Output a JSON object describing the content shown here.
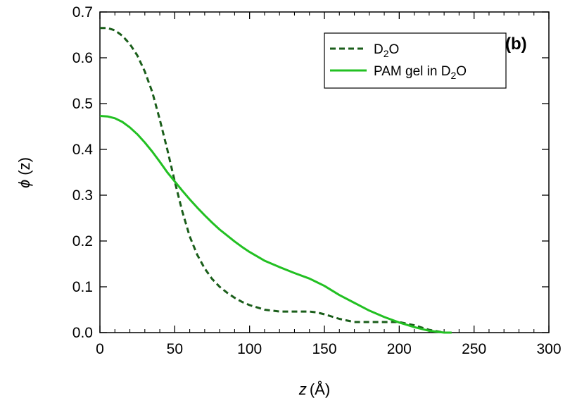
{
  "chart_data": {
    "type": "line",
    "panel_label": "(b)",
    "xlabel": {
      "var": "z",
      "unit": "(Å)"
    },
    "ylabel": {
      "var": "ϕ",
      "arg": "(z)"
    },
    "xlim": [
      0,
      300
    ],
    "ylim": [
      0,
      0.7
    ],
    "xticks": [
      0,
      50,
      100,
      150,
      200,
      250,
      300
    ],
    "xtick_labels": [
      "0",
      "50",
      "100",
      "150",
      "200",
      "250",
      "300"
    ],
    "yticks": [
      0.0,
      0.1,
      0.2,
      0.3,
      0.4,
      0.5,
      0.6,
      0.7
    ],
    "ytick_labels": [
      "0.0",
      "0.1",
      "0.2",
      "0.3",
      "0.4",
      "0.5",
      "0.6",
      "0.7"
    ],
    "grid": false,
    "legend_position": "top-right",
    "series": [
      {
        "legend": {
          "main": "D",
          "sub": "2",
          "rest": "O"
        },
        "color": "#1a5e1a",
        "dash": "dashed",
        "x": [
          0,
          5,
          10,
          15,
          20,
          25,
          30,
          35,
          40,
          45,
          50,
          55,
          60,
          65,
          70,
          75,
          80,
          85,
          90,
          95,
          100,
          110,
          120,
          130,
          140,
          145,
          150,
          155,
          160,
          170,
          180,
          190,
          200,
          210,
          220,
          230
        ],
        "y": [
          0.665,
          0.665,
          0.66,
          0.648,
          0.63,
          0.605,
          0.57,
          0.525,
          0.465,
          0.4,
          0.33,
          0.265,
          0.21,
          0.17,
          0.14,
          0.117,
          0.1,
          0.087,
          0.076,
          0.067,
          0.06,
          0.05,
          0.046,
          0.046,
          0.046,
          0.044,
          0.04,
          0.035,
          0.03,
          0.023,
          0.023,
          0.023,
          0.023,
          0.016,
          0.006,
          0.0
        ]
      },
      {
        "legend": {
          "main": "PAM gel in D",
          "sub": "2",
          "rest": "O"
        },
        "color": "#22c022",
        "dash": "solid",
        "x": [
          0,
          5,
          10,
          15,
          20,
          25,
          30,
          35,
          40,
          45,
          50,
          55,
          60,
          65,
          70,
          75,
          80,
          85,
          90,
          95,
          100,
          110,
          120,
          130,
          140,
          145,
          150,
          155,
          160,
          170,
          180,
          190,
          200,
          210,
          220,
          230,
          235
        ],
        "y": [
          0.473,
          0.472,
          0.468,
          0.46,
          0.448,
          0.433,
          0.415,
          0.395,
          0.373,
          0.35,
          0.33,
          0.31,
          0.291,
          0.273,
          0.256,
          0.24,
          0.225,
          0.212,
          0.199,
          0.187,
          0.176,
          0.157,
          0.143,
          0.13,
          0.118,
          0.11,
          0.102,
          0.092,
          0.082,
          0.065,
          0.048,
          0.034,
          0.022,
          0.012,
          0.004,
          0.0,
          0.0
        ]
      }
    ]
  }
}
